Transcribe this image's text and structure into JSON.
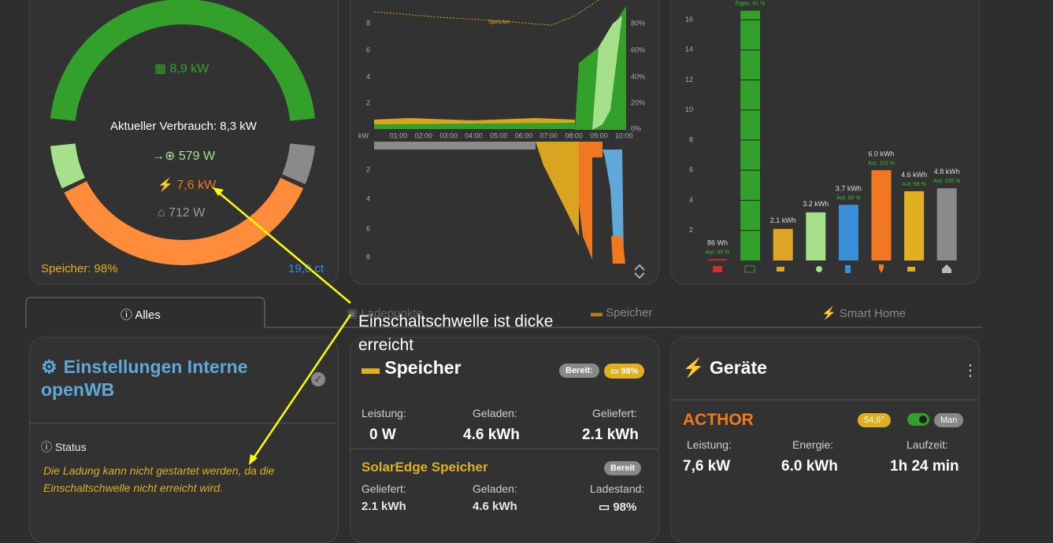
{
  "overview": {
    "pv": "8,9 kW",
    "consumption": "Aktueller Verbrauch: 8,3 kW",
    "grid": "579 W",
    "devices": "7,6 kW",
    "house": "712 W",
    "storage": "Speicher: 98%",
    "price": "19,0 ct"
  },
  "power_chart": {
    "left_ticks": [
      8,
      6,
      4,
      2
    ],
    "right_ticks": [
      "80%",
      "60%",
      "40%",
      "20%",
      "0%"
    ],
    "unit": "kW",
    "times": [
      "01:00",
      "02:00",
      "03:00",
      "04:00",
      "05:00",
      "06:00",
      "07:00",
      "08:00",
      "09:00",
      "10:00"
    ],
    "bottom_ticks": [
      2,
      4,
      6,
      8
    ],
    "storage_label": "Speicher"
  },
  "energy_chart": {
    "ylim": [
      0,
      17
    ],
    "yticks": [
      2,
      4,
      6,
      8,
      10,
      12,
      14,
      16
    ],
    "bars": [
      {
        "value": 0.086,
        "label": "86 Wh",
        "aut": "Aut: 99 %",
        "color": "#d32f2f"
      },
      {
        "value": 16.6,
        "aut": "Eigen: 81 %",
        "color": "#33a02c"
      },
      {
        "value": 2.1,
        "label": "2.1 kWh",
        "color": "#e0a526"
      },
      {
        "value": 3.2,
        "label": "3.2 kWh",
        "color": "#a6e08a"
      },
      {
        "value": 3.7,
        "label": "3.7 kWh",
        "aut": "Aut: 99 %",
        "color": "#3a8ed8"
      },
      {
        "value": 6.0,
        "label": "6.0 kWh",
        "aut": "Aut: 103 %",
        "color": "#f07820"
      },
      {
        "value": 4.6,
        "label": "4.6 kWh",
        "aut": "Aut: 99 %",
        "color": "#e0b020"
      },
      {
        "value": 4.8,
        "label": "4.8 kWh",
        "aut": "Aut: 100 %",
        "color": "#8a8a8a"
      }
    ]
  },
  "tabs": [
    "Alles",
    "Ladepunkte",
    "Speicher",
    "Smart Home"
  ],
  "annotation": "Einschaltschwelle ist dicke erreicht",
  "settings_card": {
    "title": "Einstellungen Interne openWB",
    "status_label": "Status",
    "status_text": "Die Ladung kann nicht gestartet werden, da die Einschaltschwelle nicht erreicht wird."
  },
  "storage_card": {
    "title": "Speicher",
    "ready": "Bereit:",
    "soc": "98%",
    "power_label": "Leistung:",
    "power": "0 W",
    "charged_label": "Geladen:",
    "charged": "4.6 kWh",
    "delivered_label": "Geliefert:",
    "delivered": "2.1 kWh",
    "device": {
      "name": "SolarEdge Speicher",
      "state": "Bereit",
      "delivered_label": "Geliefert:",
      "delivered": "2.1 kWh",
      "charged_label": "Geladen:",
      "charged": "4.6 kWh",
      "soc_label": "Ladestand:",
      "soc": "98%"
    }
  },
  "devices_card": {
    "title": "Geräte",
    "device": {
      "name": "ACTHOR",
      "temp": "54,6°",
      "mode": "Man",
      "power_label": "Leistung:",
      "power": "7,6 kW",
      "energy_label": "Energie:",
      "energy": "6.0 kWh",
      "runtime_label": "Laufzeit:",
      "runtime": "1h 24 min"
    }
  }
}
